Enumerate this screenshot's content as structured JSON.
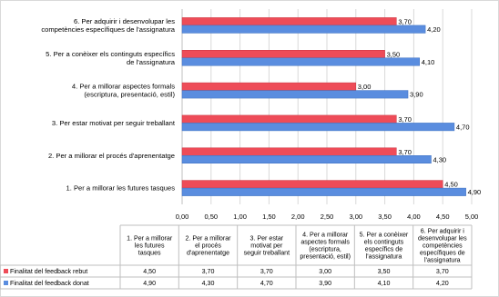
{
  "chart_data": {
    "type": "bar",
    "orientation": "horizontal",
    "categories": [
      "1. Per a millorar les futures tasques",
      "2. Per a millorar el procés d'aprenentatge",
      "3. Per estar motivat per seguir treballant",
      "4. Per a millorar aspectes formals (escriptura, presentació, estil)",
      "5. Per a conèixer els continguts específics de l'assignatura",
      "6. Per adquirir i desenvolupar les competències específiques de l'assignatura"
    ],
    "table_headers": [
      [
        "1. Per a millorar",
        "les futures",
        "tasques"
      ],
      [
        "2. Per a millorar",
        "el procés",
        "d'aprenentatge"
      ],
      [
        "3. Per estar",
        "motivat per",
        "seguir treballant"
      ],
      [
        "4. Per a millorar",
        "aspectes formals",
        "(escriptura,",
        "presentació, estil)"
      ],
      [
        "5. Per a conèixer",
        "els continguts",
        "específics de",
        "l'assignatura"
      ],
      [
        "6. Per adquirir i",
        "desenvolupar les",
        "competències",
        "específiques de",
        "l'assignatura"
      ]
    ],
    "series": [
      {
        "name": "Finalitat del feedback rebut",
        "color": "#ee4c58",
        "values": [
          4.5,
          3.7,
          3.7,
          3.0,
          3.5,
          3.7
        ],
        "labels": [
          "4,50",
          "3,70",
          "3,70",
          "3,00",
          "3,50",
          "3,70"
        ]
      },
      {
        "name": "Finalitat del feedback donat",
        "color": "#5a8ddf",
        "values": [
          4.9,
          4.3,
          4.7,
          3.9,
          4.1,
          4.2
        ],
        "labels": [
          "4,90",
          "4,30",
          "4,70",
          "3,90",
          "4,10",
          "4,20"
        ]
      }
    ],
    "xlim": [
      0,
      5
    ],
    "xticks": [
      "0,00",
      "0,50",
      "1,00",
      "1,50",
      "2,00",
      "2,50",
      "3,00",
      "3,50",
      "4,00",
      "4,50",
      "5,00"
    ],
    "grid": true,
    "data_table": true,
    "title": "",
    "xlabel": "",
    "ylabel": ""
  }
}
